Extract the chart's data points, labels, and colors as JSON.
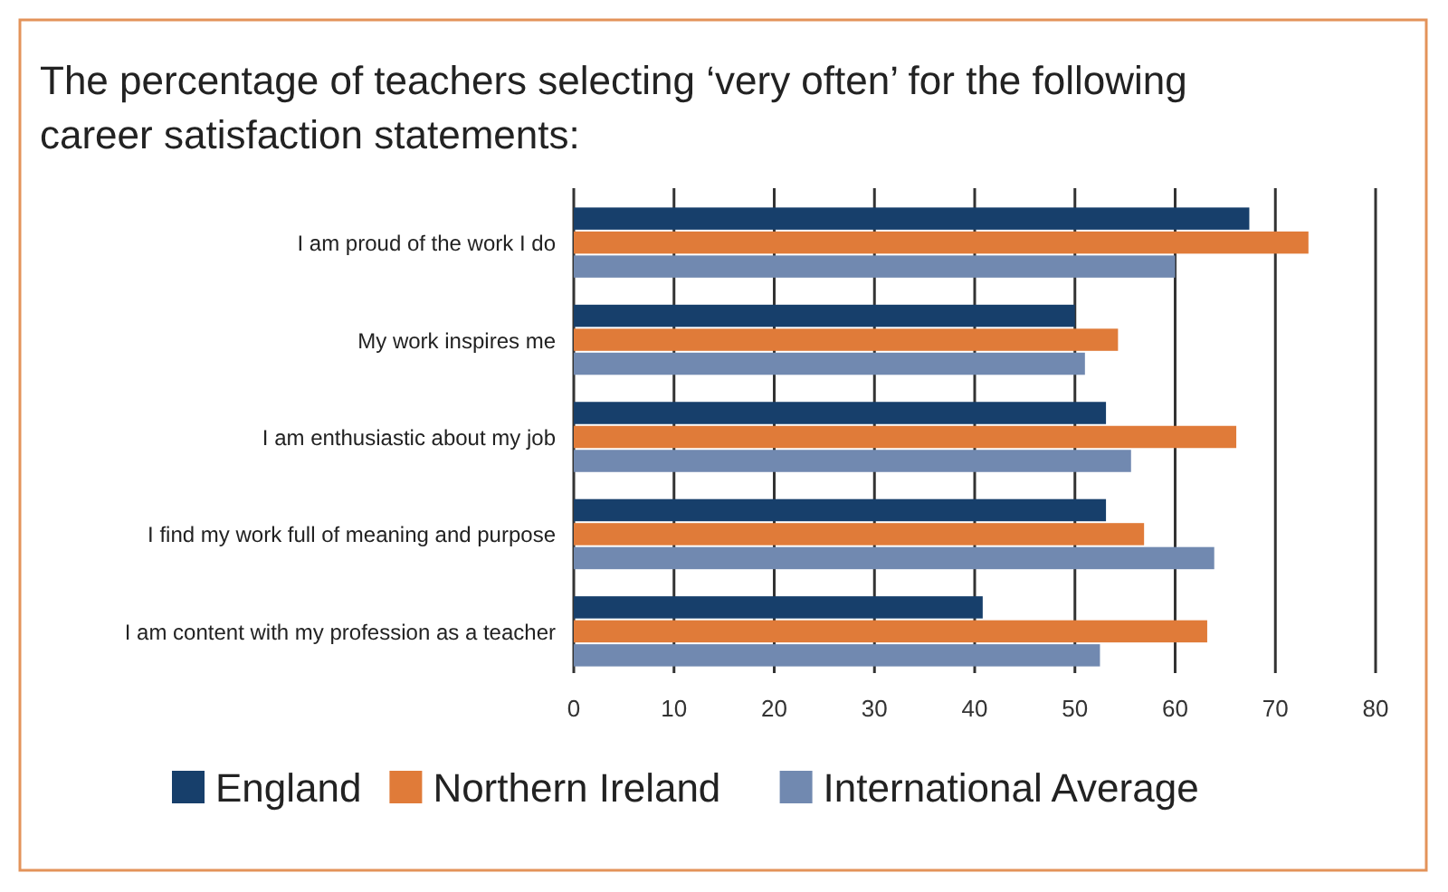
{
  "chart_data": {
    "type": "bar",
    "orientation": "horizontal",
    "title": "The percentage of teachers selecting ‘very often’ for the following career satisfaction statements:",
    "categories": [
      "I am proud of the work I do",
      "My work inspires me",
      "I am enthusiastic about my job",
      "I find my work full of meaning and purpose",
      "I am content with my profession as a teacher"
    ],
    "series": [
      {
        "name": "England",
        "color": "#173f6b",
        "values": [
          67.4,
          50,
          53.1,
          53.1,
          40.8
        ]
      },
      {
        "name": "Northern Ireland",
        "color": "#e07b39",
        "values": [
          73.3,
          54.3,
          66.1,
          56.9,
          63.2
        ]
      },
      {
        "name": "International Average",
        "color": "#7189b0",
        "values": [
          60,
          51,
          55.6,
          63.9,
          52.5
        ]
      }
    ],
    "xlim": [
      0,
      80
    ],
    "xticks": [
      0,
      10,
      20,
      30,
      40,
      50,
      60,
      70,
      80
    ],
    "grid": "x",
    "legend": "bottom"
  }
}
